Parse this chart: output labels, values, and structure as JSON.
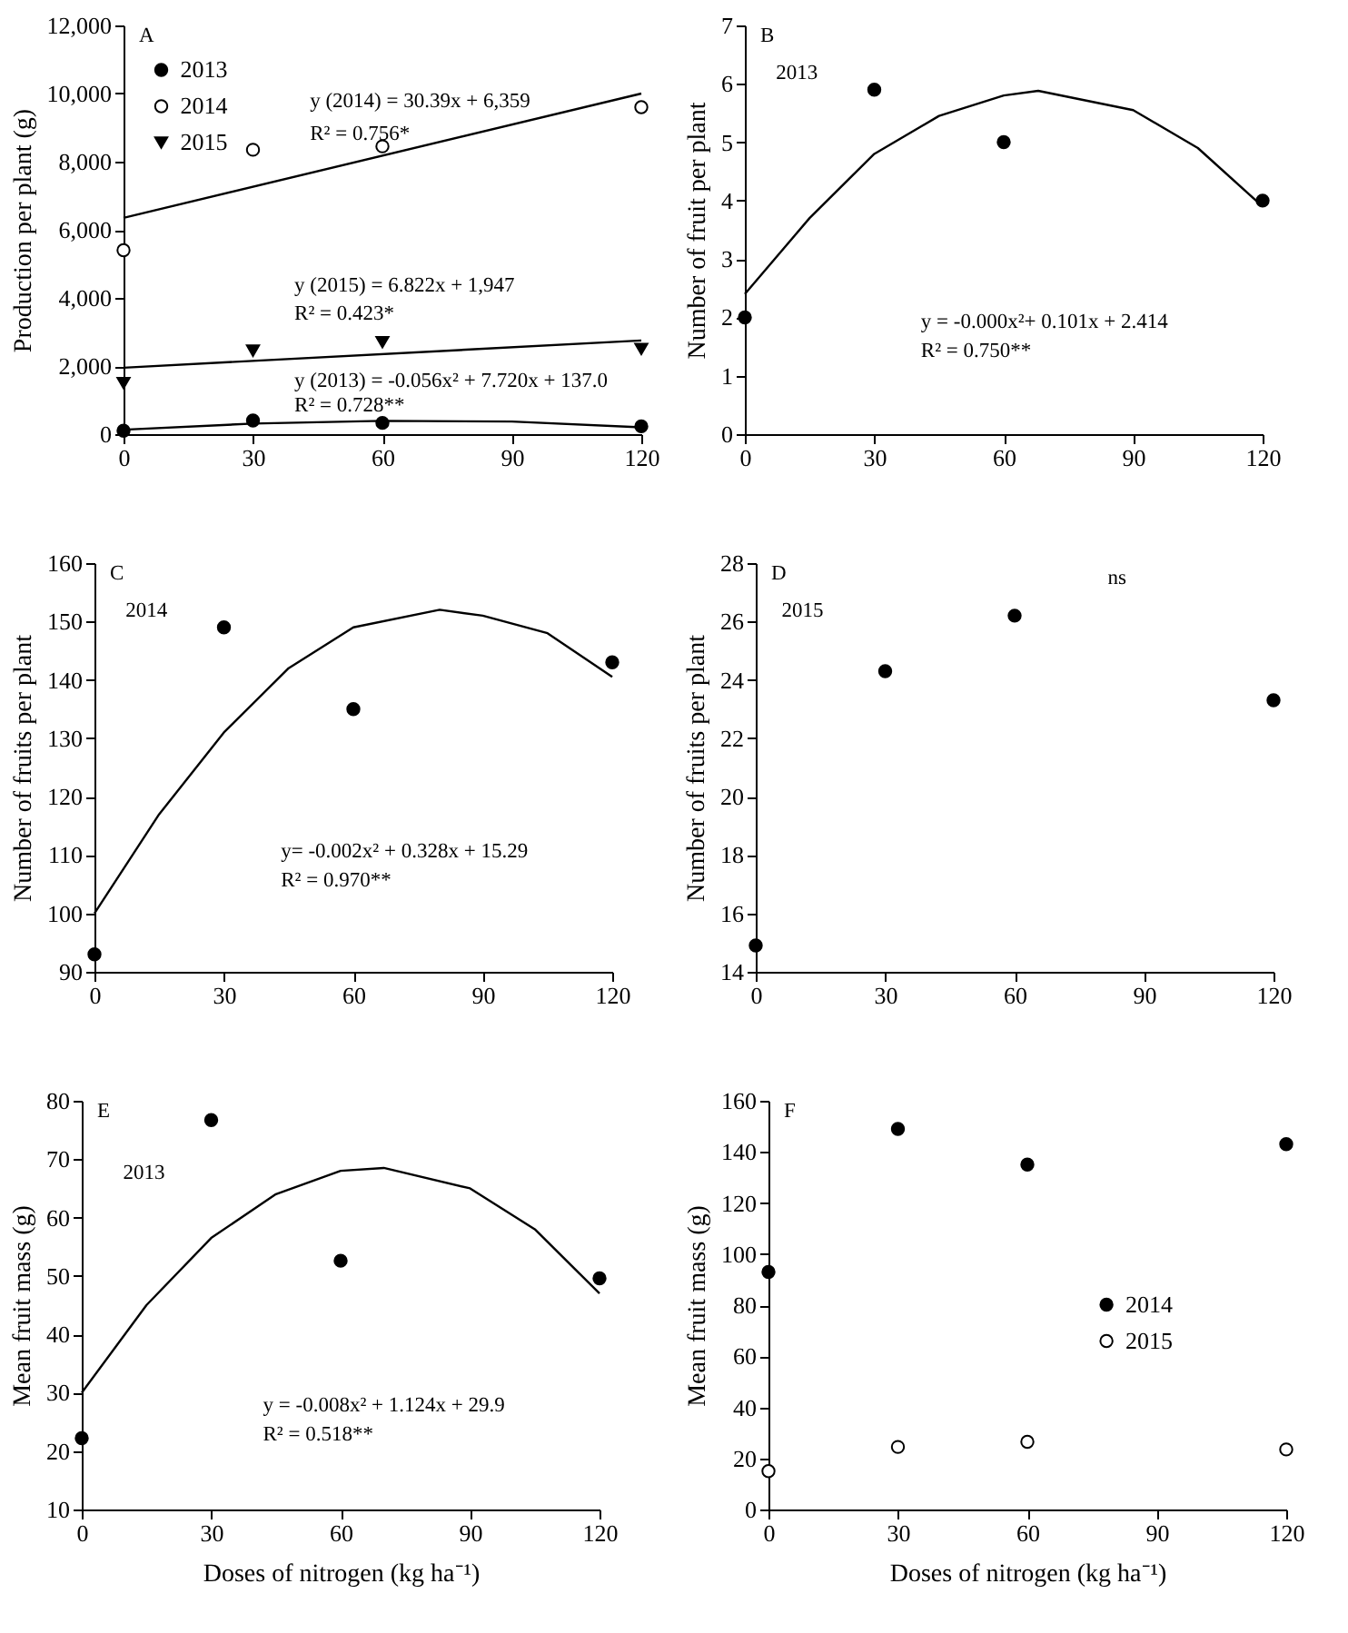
{
  "chart_data": [
    {
      "type": "scatter",
      "title": "A",
      "ylabel": "Production per plant (g)",
      "xlim": [
        0,
        120
      ],
      "xticks": [
        0,
        30,
        60,
        90,
        120
      ],
      "ylim": [
        0,
        12000
      ],
      "yticks": [
        0,
        {
          "value": 2000,
          "label": "2,000"
        },
        {
          "value": 4000,
          "label": "4,000"
        },
        {
          "value": 6000,
          "label": "6,000"
        },
        {
          "value": 8000,
          "label": "8,000"
        },
        {
          "value": 10000,
          "label": "10,000"
        },
        {
          "value": 12000,
          "label": "12,000"
        }
      ],
      "legend": "top left",
      "grid": false,
      "series": [
        {
          "name": "2013",
          "color": "#000000",
          "marker": "circle",
          "x": [
            0,
            30,
            60,
            120
          ],
          "values": [
            100,
            400,
            330,
            230
          ]
        },
        {
          "name": "2014",
          "color": "#ffffff",
          "marker": "circle",
          "x": [
            0,
            30,
            60,
            120
          ],
          "values": [
            5400,
            8350,
            8450,
            9600
          ]
        },
        {
          "name": "2015",
          "color": "#000000",
          "marker": "triangle",
          "x": [
            0,
            30,
            60,
            120
          ],
          "values": [
            1500,
            2450,
            2700,
            2500
          ]
        },
        {
          "type": "line",
          "color": "#000000",
          "x": [
            0,
            120
          ],
          "values": [
            6350,
            10000
          ]
        },
        {
          "type": "line",
          "color": "#000000",
          "x": [
            0,
            120
          ],
          "values": [
            1950,
            2750
          ]
        },
        {
          "type": "line",
          "color": "#000000",
          "x": [
            0,
            30,
            60,
            90,
            120
          ],
          "values": [
            130,
            310,
            390,
            370,
            200
          ]
        }
      ],
      "annotations": [
        "y (2014) = 30.39x + 6,359",
        "R² = 0.756*",
        "y (2015) = 6.822x + 1,947",
        "R² = 0.423*",
        "y (2013) = -0.056x²  + 7.720x + 137.0",
        "R² = 0.728**"
      ]
    },
    {
      "type": "scatter",
      "title": "B",
      "ylabel": "Number of fruit per plant",
      "xlim": [
        0,
        120
      ],
      "xticks": [
        0,
        30,
        60,
        90,
        120
      ],
      "ylim": [
        0,
        7
      ],
      "yticks": [
        0,
        1,
        2,
        3,
        4,
        5,
        6,
        7
      ],
      "grid": false,
      "series": [
        {
          "color": "#000000",
          "marker": "circle",
          "x": [
            0,
            30,
            60,
            120
          ],
          "values": [
            2,
            5.9,
            5,
            4
          ]
        },
        {
          "type": "line",
          "color": "#000000",
          "x": [
            0,
            15,
            30,
            45,
            60,
            68,
            90,
            105,
            120
          ],
          "values": [
            2.4,
            3.7,
            4.8,
            5.45,
            5.8,
            5.88,
            5.55,
            4.9,
            3.9
          ]
        }
      ],
      "annotations": [
        "2013",
        "y = -0.000x²+ 0.101x + 2.414",
        "R² = 0.750**"
      ]
    },
    {
      "type": "scatter",
      "title": "C",
      "ylabel": "Number of fruits per plant",
      "xlim": [
        0,
        120
      ],
      "xticks": [
        0,
        30,
        60,
        90,
        120
      ],
      "ylim": [
        90,
        160
      ],
      "yticks": [
        90,
        100,
        110,
        120,
        130,
        140,
        150,
        160
      ],
      "grid": false,
      "series": [
        {
          "color": "#000000",
          "marker": "circle",
          "x": [
            0,
            30,
            60,
            120
          ],
          "values": [
            93,
            149,
            135,
            143
          ]
        },
        {
          "type": "line",
          "color": "#000000",
          "x": [
            0,
            15,
            30,
            45,
            60,
            80,
            90,
            105,
            120
          ],
          "values": [
            100,
            117,
            131,
            142,
            149,
            152,
            151,
            148,
            140.5
          ]
        }
      ],
      "annotations": [
        "2014",
        "y= -0.002x² + 0.328x + 15.29",
        "R² = 0.970**"
      ]
    },
    {
      "type": "scatter",
      "title": "D",
      "ylabel": "Number of fruits per plant",
      "xlim": [
        0,
        120
      ],
      "xticks": [
        0,
        30,
        60,
        90,
        120
      ],
      "ylim": [
        14,
        28
      ],
      "yticks": [
        14,
        16,
        18,
        20,
        22,
        24,
        26,
        28
      ],
      "grid": false,
      "series": [
        {
          "color": "#000000",
          "marker": "circle",
          "x": [
            0,
            30,
            60,
            120
          ],
          "values": [
            14.9,
            24.3,
            26.2,
            23.3
          ]
        }
      ],
      "annotations": [
        "2015",
        "ns"
      ]
    },
    {
      "type": "scatter",
      "title": "E",
      "xlabel": "Doses of nitrogen (kg ha⁻¹)",
      "ylabel": "Mean fruit mass (g)",
      "xlim": [
        0,
        120
      ],
      "xticks": [
        0,
        30,
        60,
        90,
        120
      ],
      "ylim": [
        10,
        80
      ],
      "yticks": [
        10,
        20,
        30,
        40,
        50,
        60,
        70,
        80
      ],
      "grid": false,
      "series": [
        {
          "color": "#000000",
          "marker": "circle",
          "x": [
            0,
            30,
            60,
            120
          ],
          "values": [
            22.2,
            76.7,
            52.6,
            49.6
          ]
        },
        {
          "type": "line",
          "color": "#000000",
          "x": [
            0,
            15,
            30,
            45,
            60,
            70,
            90,
            105,
            120
          ],
          "values": [
            30,
            45,
            56.5,
            64,
            68,
            68.5,
            65,
            58,
            47
          ]
        }
      ],
      "annotations": [
        "2013",
        "y = -0.008x² + 1.124x + 29.9",
        "R² = 0.518**"
      ]
    },
    {
      "type": "scatter",
      "title": "F",
      "xlabel": "Doses of nitrogen (kg ha⁻¹)",
      "ylabel": "Mean fruit mass (g)",
      "xlim": [
        0,
        120
      ],
      "xticks": [
        0,
        30,
        60,
        90,
        120
      ],
      "ylim": [
        0,
        160
      ],
      "yticks": [
        0,
        20,
        40,
        60,
        80,
        100,
        120,
        140,
        160
      ],
      "legend": "right",
      "grid": false,
      "series": [
        {
          "name": "2014",
          "color": "#000000",
          "marker": "circle",
          "x": [
            0,
            30,
            60,
            120
          ],
          "values": [
            93,
            149,
            135,
            143
          ]
        },
        {
          "name": "2015",
          "color": "#ffffff",
          "marker": "circle",
          "x": [
            0,
            30,
            60,
            120
          ],
          "values": [
            15,
            24.5,
            26.5,
            23.5
          ]
        }
      ]
    }
  ]
}
